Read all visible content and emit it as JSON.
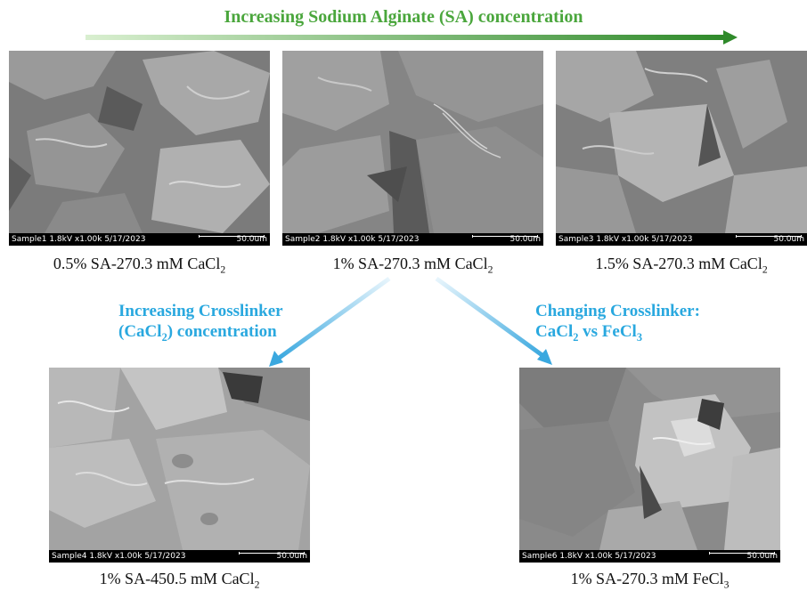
{
  "header": {
    "title": "Increasing Sodium Alginate (SA) concentration"
  },
  "colors": {
    "green": "#4aa63c",
    "blue": "#29a8df"
  },
  "panels": [
    {
      "info": "Sample1 1.8kV x1.00k 5/17/2023",
      "scale": "50.0um",
      "caption_main": "0.5% SA-270.3 mM CaCl",
      "caption_sub": "2"
    },
    {
      "info": "Sample2 1.8kV x1.00k 5/17/2023",
      "scale": "50.0um",
      "caption_main": "1% SA-270.3 mM CaCl",
      "caption_sub": "2"
    },
    {
      "info": "Sample3 1.8kV x1.00k 5/17/2023",
      "scale": "50.0um",
      "caption_main": "1.5% SA-270.3 mM CaCl",
      "caption_sub": "2"
    },
    {
      "info": "Sample4 1.8kV x1.00k 5/17/2023",
      "scale": "50.0um",
      "caption_main": "1% SA-450.5 mM CaCl",
      "caption_sub": "2"
    },
    {
      "info": "Sample6 1.8kV x1.00k 5/17/2023",
      "scale": "50.0um",
      "caption_main": "1% SA-270.3 mM FeCl",
      "caption_sub": "3"
    }
  ],
  "labels": {
    "crosslinker_conc_line1": "Increasing Crosslinker",
    "crosslinker_conc_line2_a": "(CaCl",
    "crosslinker_conc_line2_sub": "2",
    "crosslinker_conc_line2_b": ") concentration",
    "crosslinker_change_line1": "Changing Crosslinker:",
    "crosslinker_change_line2_a": "CaCl",
    "crosslinker_change_line2_sub1": "2",
    "crosslinker_change_line2_b": " vs FeCl",
    "crosslinker_change_line2_sub2": "3"
  }
}
